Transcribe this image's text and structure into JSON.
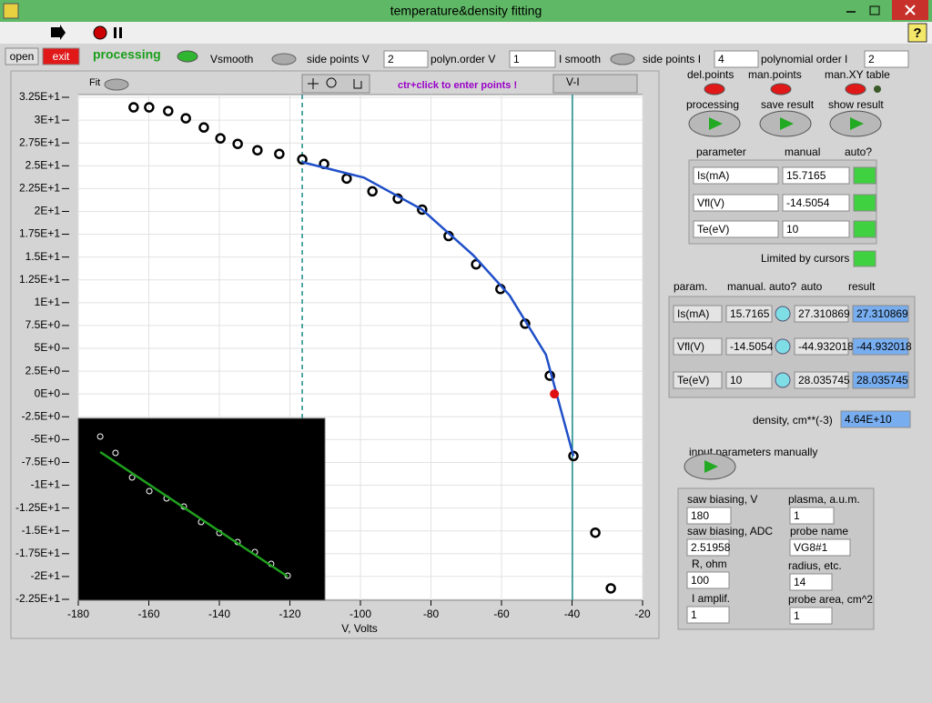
{
  "window": {
    "title": "temperature&density fitting"
  },
  "toolbar": {
    "open": "open",
    "exit": "exit",
    "processing": "processing",
    "vsmooth": "Vsmooth",
    "side_points_v_label": "side points V",
    "side_points_v": 2,
    "polyn_order_v_label": "polyn.order V",
    "polyn_order_v": 1,
    "ismooth": "I smooth",
    "side_points_i_label": "side points I",
    "side_points_i": 4,
    "polynomial_order_i_label": "polynomial order I",
    "polynomial_order_i": 2
  },
  "graph": {
    "fit": "Fit",
    "hint": "ctr+click to enter points !"
  },
  "chart_data": [
    {
      "type": "scatter",
      "x_label": "V, Volts",
      "grid": true,
      "xlim": [
        -180,
        -20
      ],
      "xticks": [
        -180,
        -160,
        -140,
        -120,
        -100,
        -80,
        -60,
        -40,
        -20
      ],
      "ylim": [
        -22.6,
        32.8
      ],
      "yticks": [
        {
          "value": 32.5,
          "label": "3.25E+1"
        },
        {
          "value": 30,
          "label": "3E+1"
        },
        {
          "value": 27.5,
          "label": "2.75E+1"
        },
        {
          "value": 25,
          "label": "2.5E+1"
        },
        {
          "value": 22.5,
          "label": "2.25E+1"
        },
        {
          "value": 20,
          "label": "2E+1"
        },
        {
          "value": 17.5,
          "label": "1.75E+1"
        },
        {
          "value": 15,
          "label": "1.5E+1"
        },
        {
          "value": 12.5,
          "label": "1.25E+1"
        },
        {
          "value": 10,
          "label": "1E+1"
        },
        {
          "value": 7.5,
          "label": "7.5E+0"
        },
        {
          "value": 5,
          "label": "5E+0"
        },
        {
          "value": 2.5,
          "label": "2.5E+0"
        },
        {
          "value": 0,
          "label": "0E+0"
        },
        {
          "value": -2.5,
          "label": "-2.5E+0"
        },
        {
          "value": -5,
          "label": "-5E+0"
        },
        {
          "value": -7.5,
          "label": "-7.5E+0"
        },
        {
          "value": -10,
          "label": "-1E+1"
        },
        {
          "value": -12.5,
          "label": "-1.25E+1"
        },
        {
          "value": -15,
          "label": "-1.5E+1"
        },
        {
          "value": -17.5,
          "label": "-1.75E+1"
        },
        {
          "value": -20,
          "label": "-2E+1"
        },
        {
          "value": -22.5,
          "label": "-2.25E+1"
        }
      ],
      "cursors": [
        -116.5,
        -39.9
      ],
      "cursor_color": "#1a8a8a",
      "series": [
        {
          "name": "V-I",
          "style": "points",
          "color": "#000000",
          "x": [
            -164.3,
            -159.9,
            -154.5,
            -149.5,
            -144.4,
            -139.7,
            -134.8,
            -129.2,
            -123.0,
            -116.5,
            -110.3,
            -103.9,
            -96.6,
            -89.4,
            -82.5,
            -75.0,
            -67.2,
            -60.3,
            -53.3,
            -46.3,
            -39.6,
            -33.4,
            -29.0
          ],
          "values": [
            31.4,
            31.4,
            31.0,
            30.2,
            29.2,
            28.0,
            27.4,
            26.7,
            26.3,
            25.7,
            25.2,
            23.6,
            22.2,
            21.4,
            20.2,
            17.3,
            14.2,
            11.5,
            7.7,
            2.0,
            -6.8,
            -15.2,
            -21.3
          ]
        },
        {
          "style": "line",
          "color": "#1f4fc8",
          "x": [
            -116.5,
            -99.0,
            -82.5,
            -68.0,
            -57.7,
            -47.4,
            -39.6
          ],
          "values": [
            25.4,
            23.7,
            20.2,
            15.2,
            10.8,
            4.3,
            -6.8
          ]
        },
        {
          "style": "dot",
          "color": "#e01010",
          "x": [
            -45.0
          ],
          "values": [
            0.0
          ]
        }
      ]
    },
    {
      "type": "scatter",
      "background": "#000000",
      "xlim": [
        0,
        100
      ],
      "ylim": [
        0,
        100
      ],
      "series": [
        {
          "style": "points",
          "color": "#ffffff",
          "x": [
            8.9,
            15.1,
            21.8,
            28.8,
            35.8,
            42.8,
            49.8,
            57.2,
            64.6,
            71.6,
            78.2,
            84.9
          ],
          "values": [
            90,
            81,
            67.5,
            60,
            56,
            51.5,
            43,
            37,
            32,
            26.5,
            20,
            13.5
          ]
        },
        {
          "style": "line",
          "color": "#1fa01f",
          "x": [
            8.9,
            84.9
          ],
          "values": [
            81.5,
            13
          ]
        }
      ]
    }
  ],
  "panel": {
    "del_points": "del.points",
    "man_points": "man.points",
    "man_xy_table": "man.XY table",
    "processing": "processing",
    "save_result": "save result",
    "show_result": "show result",
    "table1": {
      "headers": [
        "parameter",
        "manual",
        "auto?"
      ],
      "rows": [
        [
          "Is(mA)",
          15.7165
        ],
        [
          "Vfl(V)",
          -14.5054
        ],
        [
          "Te(eV)",
          10
        ]
      ]
    },
    "limited_by_cursors": "Limited by cursors",
    "table2": {
      "headers": [
        "param.",
        "manual.",
        "auto?",
        "auto",
        "result"
      ],
      "rows": [
        [
          "Is(mA)",
          15.7165,
          27.310869,
          27.310869
        ],
        [
          "Vfl(V)",
          -14.5054,
          -44.932018,
          -44.932018
        ],
        [
          "Te(eV)",
          10,
          28.035745,
          28.035745
        ]
      ]
    },
    "density_label": "density, cm**(-3)",
    "density": "4.64E+10",
    "input_manually": "input parameters manually",
    "probe": [
      [
        "saw biasing, V",
        180
      ],
      [
        "plasma, a.u.m.",
        1
      ],
      [
        "saw biasing, ADC",
        2.51958
      ],
      [
        "probe name",
        "VG8#1"
      ],
      [
        "R, ohm",
        100
      ],
      [
        "radius, etc.",
        14
      ],
      [
        "I amplif.",
        1
      ],
      [
        "probe area, cm^2",
        1
      ]
    ]
  }
}
